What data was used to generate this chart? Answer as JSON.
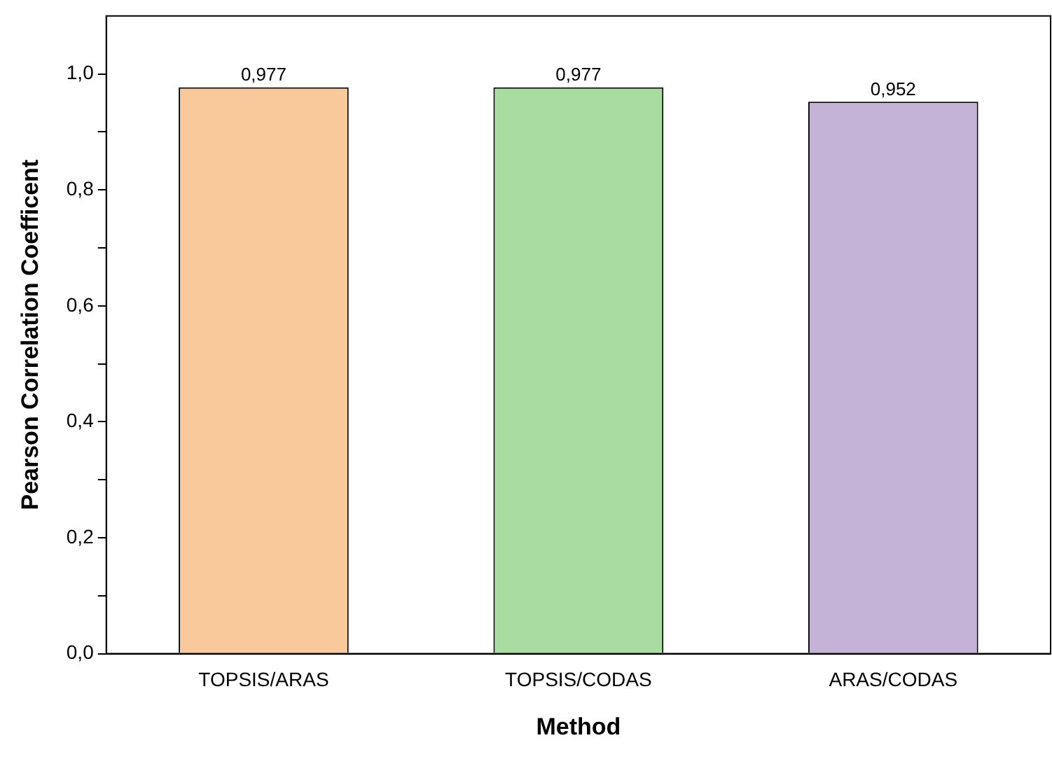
{
  "chart_data": {
    "type": "bar",
    "xlabel": "Method",
    "ylabel": "Pearson Correlation Coefficent",
    "categories": [
      "TOPSIS/ARAS",
      "TOPSIS/CODAS",
      "ARAS/CODAS"
    ],
    "values": [
      0.977,
      0.977,
      0.952
    ],
    "colors": [
      "#f9c89b",
      "#a8dca0",
      "#c4b2d7"
    ],
    "value_labels": [
      "0,977",
      "0,977",
      "0,952"
    ],
    "ylim": [
      0,
      1.1
    ],
    "yticks": [
      {
        "value": 0,
        "label": "0,0"
      },
      {
        "value": 0.1,
        "label": null
      },
      {
        "value": 0.2,
        "label": "0,2"
      },
      {
        "value": 0.3,
        "label": null
      },
      {
        "value": 0.4,
        "label": "0,4"
      },
      {
        "value": 0.5,
        "label": null
      },
      {
        "value": 0.6,
        "label": "0,6"
      },
      {
        "value": 0.7,
        "label": null
      },
      {
        "value": 0.8,
        "label": "0,8"
      },
      {
        "value": 0.9,
        "label": null
      },
      {
        "value": 1,
        "label": "1,0"
      }
    ],
    "grid": false,
    "legend": false
  }
}
